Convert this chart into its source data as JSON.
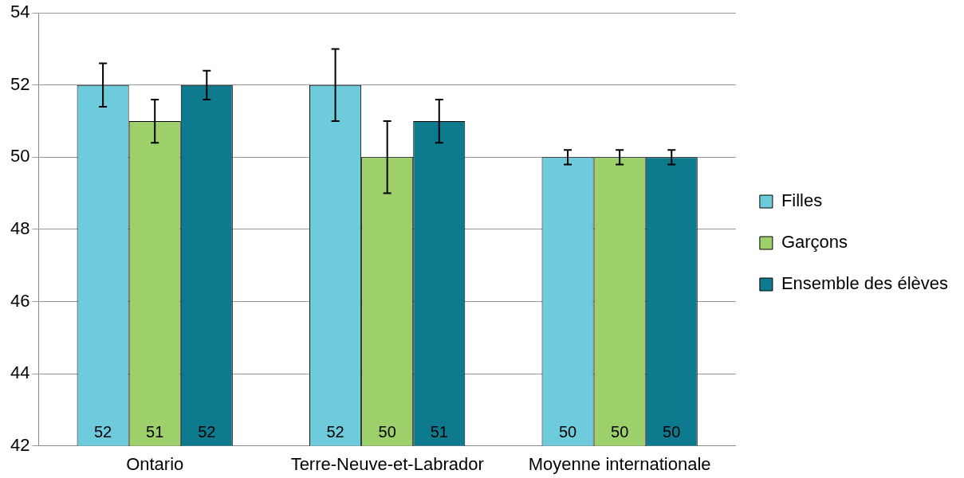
{
  "chart_data": {
    "type": "bar",
    "categories": [
      "Ontario",
      "Terre-Neuve-et-Labrador",
      "Moyenne internationale"
    ],
    "series": [
      {
        "name": "Filles",
        "color": "#6dcbdb",
        "values": [
          52,
          52,
          50
        ],
        "errors": [
          0.6,
          1,
          0.2
        ]
      },
      {
        "name": "Garçons",
        "color": "#9dcf6a",
        "values": [
          51,
          50,
          50
        ],
        "errors": [
          0.6,
          1,
          0.2
        ]
      },
      {
        "name": "Ensemble des élèves",
        "color": "#0e7a8d",
        "values": [
          52,
          51,
          50
        ],
        "errors": [
          0.4,
          0.6,
          0.2
        ]
      }
    ],
    "ylim": [
      42,
      54
    ],
    "yticks": [
      42,
      44,
      46,
      48,
      50,
      52,
      54
    ],
    "grid": "y",
    "legend": "right",
    "data_labels": true
  }
}
